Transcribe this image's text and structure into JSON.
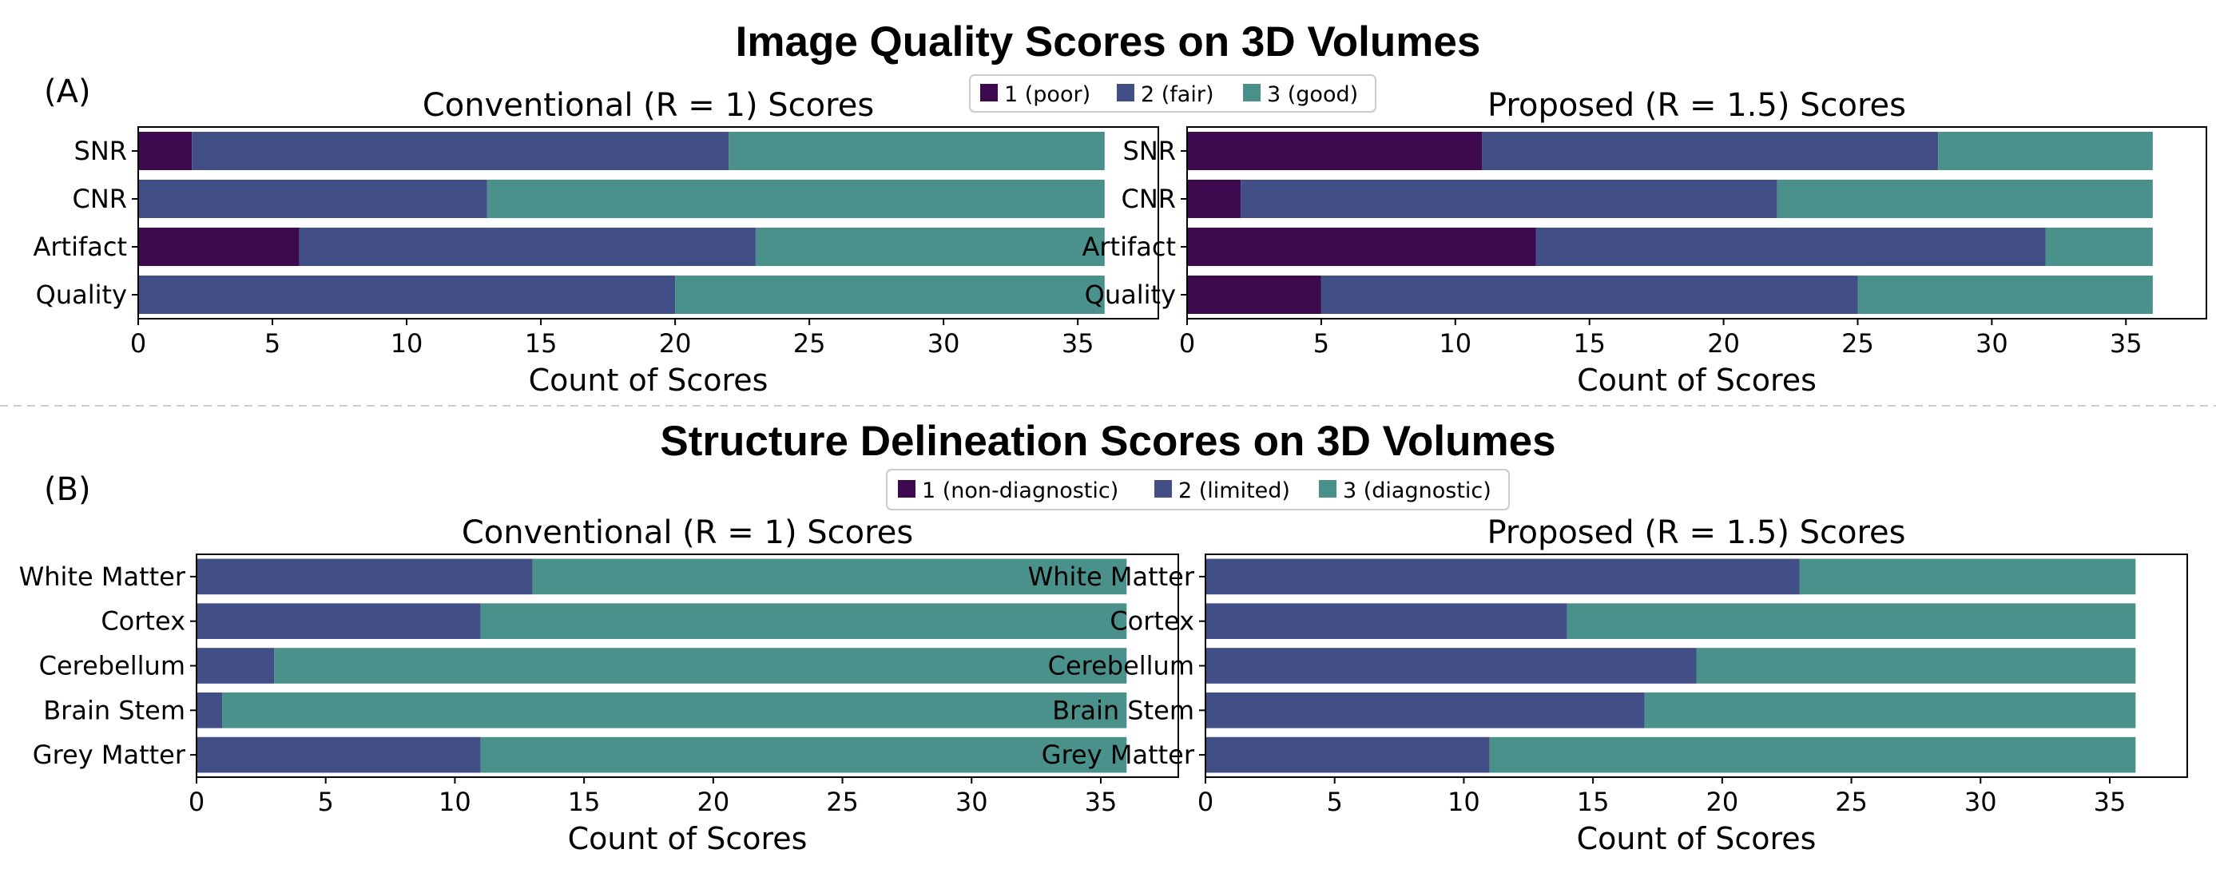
{
  "figure": {
    "section_a": {
      "panel_label": "(A)",
      "title": "Image Quality Scores on 3D Volumes",
      "legend": [
        "1 (poor)",
        "2 (fair)",
        "3 (good)"
      ]
    },
    "section_b": {
      "panel_label": "(B)",
      "title": "Structure Delineation Scores on 3D Volumes",
      "legend": [
        "1 (non-diagnostic)",
        "2 (limited)",
        "3 (diagnostic)"
      ]
    }
  },
  "colors": {
    "score1": "#3d0a4f",
    "score2": "#414f86",
    "score3": "#49918a",
    "separator": "#cccccc"
  },
  "chart_data": [
    {
      "id": "a_conventional",
      "type": "bar",
      "orientation": "horizontal",
      "stacked": true,
      "title": "Conventional (R = 1) Scores",
      "xlabel": "Count of Scores",
      "categories": [
        "SNR",
        "CNR",
        "Artifact",
        "Quality"
      ],
      "series": [
        {
          "name": "1 (poor)",
          "values": [
            2,
            0,
            6,
            0
          ]
        },
        {
          "name": "2 (fair)",
          "values": [
            20,
            13,
            17,
            20
          ]
        },
        {
          "name": "3 (good)",
          "values": [
            14,
            23,
            13,
            16
          ]
        }
      ],
      "xlim": [
        0,
        38
      ],
      "xticks": [
        0,
        5,
        10,
        15,
        20,
        25,
        30,
        35
      ]
    },
    {
      "id": "a_proposed",
      "type": "bar",
      "orientation": "horizontal",
      "stacked": true,
      "title": "Proposed (R = 1.5) Scores",
      "xlabel": "Count of Scores",
      "categories": [
        "SNR",
        "CNR",
        "Artifact",
        "Quality"
      ],
      "series": [
        {
          "name": "1 (poor)",
          "values": [
            11,
            2,
            13,
            5
          ]
        },
        {
          "name": "2 (fair)",
          "values": [
            17,
            20,
            19,
            20
          ]
        },
        {
          "name": "3 (good)",
          "values": [
            8,
            14,
            4,
            11
          ]
        }
      ],
      "xlim": [
        0,
        38
      ],
      "xticks": [
        0,
        5,
        10,
        15,
        20,
        25,
        30,
        35
      ]
    },
    {
      "id": "b_conventional",
      "type": "bar",
      "orientation": "horizontal",
      "stacked": true,
      "title": "Conventional (R = 1) Scores",
      "xlabel": "Count of Scores",
      "categories": [
        "White Matter",
        "Cortex",
        "Cerebellum",
        "Brain Stem",
        "Grey Matter"
      ],
      "series": [
        {
          "name": "1 (non-diagnostic)",
          "values": [
            0,
            0,
            0,
            0,
            0
          ]
        },
        {
          "name": "2 (limited)",
          "values": [
            13,
            11,
            3,
            1,
            11
          ]
        },
        {
          "name": "3 (diagnostic)",
          "values": [
            23,
            25,
            33,
            35,
            25
          ]
        }
      ],
      "xlim": [
        0,
        38
      ],
      "xticks": [
        0,
        5,
        10,
        15,
        20,
        25,
        30,
        35
      ]
    },
    {
      "id": "b_proposed",
      "type": "bar",
      "orientation": "horizontal",
      "stacked": true,
      "title": "Proposed (R = 1.5) Scores",
      "xlabel": "Count of Scores",
      "categories": [
        "White Matter",
        "Cortex",
        "Cerebellum",
        "Brain Stem",
        "Grey Matter"
      ],
      "series": [
        {
          "name": "1 (non-diagnostic)",
          "values": [
            0,
            0,
            0,
            0,
            0
          ]
        },
        {
          "name": "2 (limited)",
          "values": [
            23,
            14,
            19,
            17,
            11
          ]
        },
        {
          "name": "3 (diagnostic)",
          "values": [
            13,
            22,
            17,
            19,
            25
          ]
        }
      ],
      "xlim": [
        0,
        38
      ],
      "xticks": [
        0,
        5,
        10,
        15,
        20,
        25,
        30,
        35
      ]
    }
  ]
}
